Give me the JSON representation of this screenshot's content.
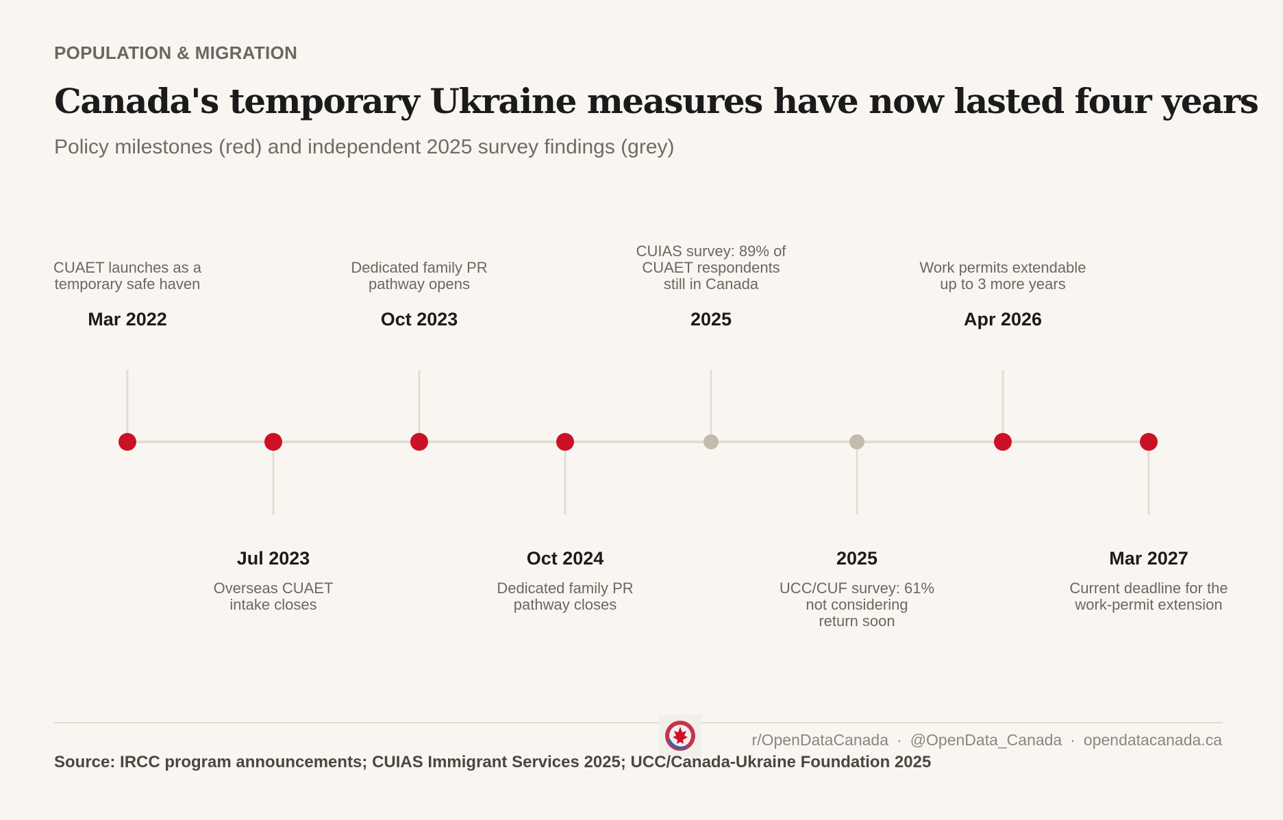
{
  "kicker": "POPULATION & MIGRATION",
  "title": "Canada's temporary Ukraine measures have now lasted four years",
  "subtitle": "Policy milestones (red) and independent 2025 survey findings (grey)",
  "colors": {
    "background": "#f9f6f2",
    "policy": "#cc1126",
    "survey": "#c3bbab",
    "axis": "#e2ddd4"
  },
  "events": [
    {
      "date": "Mar 2022",
      "desc_lines": [
        "CUAET launches as a",
        "temporary safe haven"
      ],
      "kind": "policy",
      "side": "above"
    },
    {
      "date": "Jul 2023",
      "desc_lines": [
        "Overseas CUAET",
        "intake closes"
      ],
      "kind": "policy",
      "side": "below"
    },
    {
      "date": "Oct 2023",
      "desc_lines": [
        "Dedicated family PR",
        "pathway opens"
      ],
      "kind": "policy",
      "side": "above"
    },
    {
      "date": "Oct 2024",
      "desc_lines": [
        "Dedicated family PR",
        "pathway closes"
      ],
      "kind": "policy",
      "side": "below"
    },
    {
      "date": "2025",
      "desc_lines": [
        "CUIAS survey: 89% of",
        "CUAET respondents",
        "still in Canada"
      ],
      "kind": "survey",
      "side": "above"
    },
    {
      "date": "2025",
      "desc_lines": [
        "UCC/CUF survey: 61%",
        "not considering",
        "return soon"
      ],
      "kind": "survey",
      "side": "below"
    },
    {
      "date": "Apr 2026",
      "desc_lines": [
        "Work permits extendable",
        "up to 3 more years"
      ],
      "kind": "policy",
      "side": "above"
    },
    {
      "date": "Mar 2027",
      "desc_lines": [
        "Current deadline for the",
        "work-permit extension"
      ],
      "kind": "policy",
      "side": "below"
    }
  ],
  "footer": {
    "links": [
      "r/OpenDataCanada",
      "@OpenData_Canada",
      "opendatacanada.ca"
    ],
    "separator": "·",
    "source": "Source: IRCC program announcements; CUIAS Immigrant Services 2025; UCC/Canada-Ukraine Foundation 2025",
    "logo_icon": "maple-leaf-logo-icon"
  }
}
